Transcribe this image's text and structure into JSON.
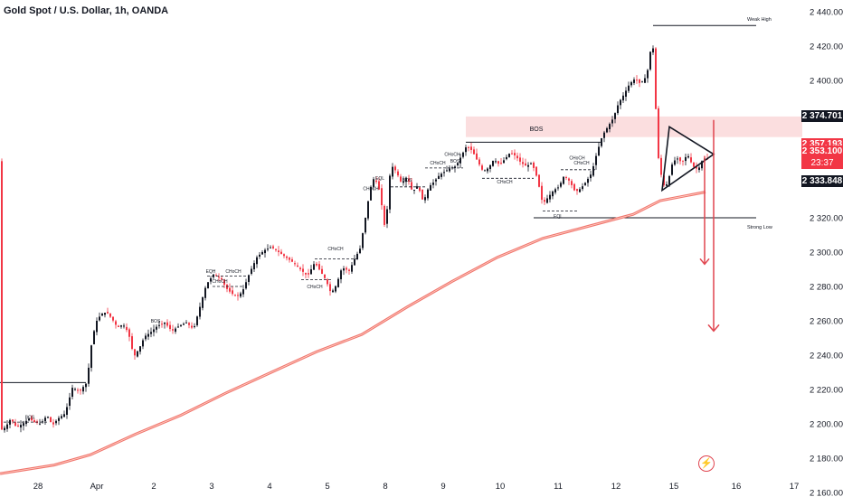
{
  "header": {
    "title": "Gold Spot / U.S. Dollar, 1h, OANDA"
  },
  "price_tags": {
    "resistance": "2 374.701",
    "prev": "2 357.193",
    "current": "2 353.100",
    "countdown": "23:37",
    "support": "2 333.848"
  },
  "chart_data": {
    "type": "candlestick",
    "y_ticks": [
      2440,
      2420,
      2400,
      2380,
      2360,
      2340,
      2320,
      2300,
      2280,
      2260,
      2240,
      2220,
      2200,
      2180,
      2160
    ],
    "y_tick_labels": [
      "2 440.000",
      "2 420.000",
      "2 400.000",
      "2 380.000",
      "2 360.000",
      "2 340.000",
      "2 320.000",
      "2 300.000",
      "2 280.000",
      "2 260.000",
      "2 240.000",
      "2 220.000",
      "2 200.000",
      "2 180.000",
      "2 160.000"
    ],
    "x_tick_labels": [
      "28",
      "Apr",
      "2",
      "3",
      "4",
      "5",
      "8",
      "9",
      "10",
      "11",
      "12",
      "15",
      "16",
      "17"
    ],
    "colors": {
      "up": "#131722",
      "down": "#f23645",
      "zone": "#fad3d4",
      "ma": "#f0766f",
      "arrow": "#e0444e"
    },
    "path_points": [
      [
        0,
        2196
      ],
      [
        6,
        2198
      ],
      [
        12,
        2203
      ],
      [
        18,
        2198
      ],
      [
        25,
        2200
      ],
      [
        32,
        2203
      ],
      [
        38,
        2201
      ],
      [
        45,
        2200
      ],
      [
        52,
        2205
      ],
      [
        58,
        2199
      ],
      [
        64,
        2203
      ],
      [
        72,
        2206
      ],
      [
        80,
        2221
      ],
      [
        88,
        2219
      ],
      [
        96,
        2224
      ],
      [
        102,
        2250
      ],
      [
        107,
        2260
      ],
      [
        112,
        2264
      ],
      [
        118,
        2265
      ],
      [
        124,
        2261
      ],
      [
        130,
        2256
      ],
      [
        136,
        2258
      ],
      [
        142,
        2253
      ],
      [
        148,
        2239
      ],
      [
        154,
        2244
      ],
      [
        160,
        2251
      ],
      [
        166,
        2253
      ],
      [
        174,
        2257
      ],
      [
        182,
        2259
      ],
      [
        190,
        2254
      ],
      [
        198,
        2257
      ],
      [
        206,
        2259
      ],
      [
        214,
        2255
      ],
      [
        222,
        2270
      ],
      [
        228,
        2281
      ],
      [
        236,
        2287
      ],
      [
        244,
        2285
      ],
      [
        250,
        2279
      ],
      [
        256,
        2276
      ],
      [
        262,
        2274
      ],
      [
        268,
        2277
      ],
      [
        276,
        2288
      ],
      [
        284,
        2297
      ],
      [
        292,
        2301
      ],
      [
        300,
        2303
      ],
      [
        308,
        2300
      ],
      [
        316,
        2297
      ],
      [
        324,
        2294
      ],
      [
        332,
        2290
      ],
      [
        340,
        2286
      ],
      [
        348,
        2294
      ],
      [
        354,
        2289
      ],
      [
        360,
        2284
      ],
      [
        366,
        2276
      ],
      [
        372,
        2281
      ],
      [
        378,
        2291
      ],
      [
        386,
        2289
      ],
      [
        392,
        2296
      ],
      [
        398,
        2302
      ],
      [
        404,
        2320
      ],
      [
        408,
        2333
      ],
      [
        412,
        2343
      ],
      [
        416,
        2341
      ],
      [
        420,
        2335
      ],
      [
        426,
        2312
      ],
      [
        432,
        2351
      ],
      [
        438,
        2347
      ],
      [
        444,
        2340
      ],
      [
        450,
        2344
      ],
      [
        456,
        2335
      ],
      [
        462,
        2339
      ],
      [
        468,
        2329
      ],
      [
        474,
        2338
      ],
      [
        480,
        2341
      ],
      [
        486,
        2345
      ],
      [
        492,
        2347
      ],
      [
        498,
        2349
      ],
      [
        504,
        2350
      ],
      [
        510,
        2356
      ],
      [
        516,
        2362
      ],
      [
        522,
        2359
      ],
      [
        528,
        2353
      ],
      [
        534,
        2347
      ],
      [
        540,
        2349
      ],
      [
        546,
        2354
      ],
      [
        552,
        2351
      ],
      [
        558,
        2354
      ],
      [
        564,
        2358
      ],
      [
        570,
        2356
      ],
      [
        576,
        2352
      ],
      [
        582,
        2350
      ],
      [
        588,
        2352
      ],
      [
        594,
        2343
      ],
      [
        600,
        2328
      ],
      [
        606,
        2332
      ],
      [
        612,
        2336
      ],
      [
        618,
        2338
      ],
      [
        624,
        2345
      ],
      [
        630,
        2341
      ],
      [
        636,
        2335
      ],
      [
        642,
        2337
      ],
      [
        648,
        2341
      ],
      [
        654,
        2346
      ],
      [
        660,
        2358
      ],
      [
        666,
        2368
      ],
      [
        672,
        2373
      ],
      [
        678,
        2378
      ],
      [
        684,
        2387
      ],
      [
        690,
        2392
      ],
      [
        696,
        2398
      ],
      [
        702,
        2401
      ],
      [
        708,
        2398
      ],
      [
        714,
        2402
      ],
      [
        718,
        2410
      ],
      [
        721,
        2430
      ],
      [
        724,
        2396
      ],
      [
        727,
        2358
      ],
      [
        731,
        2345
      ],
      [
        735,
        2337
      ],
      [
        739,
        2342
      ],
      [
        743,
        2351
      ],
      [
        748,
        2355
      ],
      [
        754,
        2352
      ],
      [
        760,
        2357
      ],
      [
        766,
        2350
      ],
      [
        772,
        2348
      ],
      [
        776,
        2353
      ],
      [
        780,
        2355
      ],
      [
        784,
        2353
      ]
    ],
    "moving_average": [
      [
        0,
        2171
      ],
      [
        60,
        2176
      ],
      [
        100,
        2182
      ],
      [
        150,
        2194
      ],
      [
        200,
        2205
      ],
      [
        250,
        2218
      ],
      [
        300,
        2230
      ],
      [
        350,
        2242
      ],
      [
        400,
        2252
      ],
      [
        450,
        2268
      ],
      [
        500,
        2283
      ],
      [
        550,
        2297
      ],
      [
        600,
        2308
      ],
      [
        650,
        2315
      ],
      [
        700,
        2322
      ],
      [
        730,
        2330
      ],
      [
        760,
        2333
      ],
      [
        780,
        2335
      ]
    ],
    "zone": {
      "top": 2379,
      "bottom": 2367,
      "label": "BOS"
    },
    "levels": [
      {
        "label": "Weak High",
        "y": 2432
      },
      {
        "label": "Strong Low",
        "y": 2320
      },
      {
        "label": "",
        "y": 2224
      }
    ],
    "annotations": [
      "BOS",
      "BOS",
      "EQH",
      "CHoCH",
      "CHoCH",
      "CHoCH",
      "CHoCH",
      "CHoCH",
      "EQL",
      "BOS",
      "CHoCH",
      "CHoCH",
      "BOS",
      "CHoCH",
      "CHoCH",
      "CHoCH",
      "EQL"
    ],
    "triangle": {
      "apex_y": 2357,
      "top_y": 2373,
      "bottom_y": 2336
    },
    "arrows": [
      {
        "from": 2356,
        "to": 2293
      },
      {
        "from": 2377,
        "to": 2254
      }
    ]
  }
}
